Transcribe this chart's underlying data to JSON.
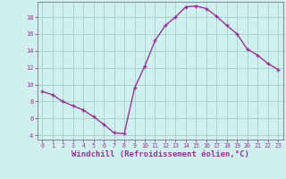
{
  "x": [
    0,
    1,
    2,
    3,
    4,
    5,
    6,
    7,
    8,
    9,
    10,
    11,
    12,
    13,
    14,
    15,
    16,
    17,
    18,
    19,
    20,
    21,
    22,
    23
  ],
  "y": [
    9.2,
    8.8,
    8.0,
    7.5,
    7.0,
    6.2,
    5.3,
    4.3,
    4.2,
    9.6,
    12.2,
    15.2,
    17.0,
    18.0,
    19.2,
    19.3,
    19.0,
    18.1,
    17.0,
    16.0,
    14.2,
    13.5,
    12.5,
    11.8
  ],
  "line_color": "#993399",
  "marker": "+",
  "marker_size": 3.5,
  "marker_lw": 1.0,
  "linewidth": 1.0,
  "xlabel": "Windchill (Refroidissement éolien,°C)",
  "xlabel_fontsize": 6.5,
  "bg_color": "#cff0ee",
  "grid_color": "#99ccbb",
  "tick_color": "#993399",
  "label_color": "#993399",
  "ylim": [
    3.5,
    19.8
  ],
  "yticks": [
    4,
    6,
    8,
    10,
    12,
    14,
    16,
    18
  ],
  "xticks": [
    0,
    1,
    2,
    3,
    4,
    5,
    6,
    7,
    8,
    9,
    10,
    11,
    12,
    13,
    14,
    15,
    16,
    17,
    18,
    19,
    20,
    21,
    22,
    23
  ],
  "spine_color": "#777788"
}
